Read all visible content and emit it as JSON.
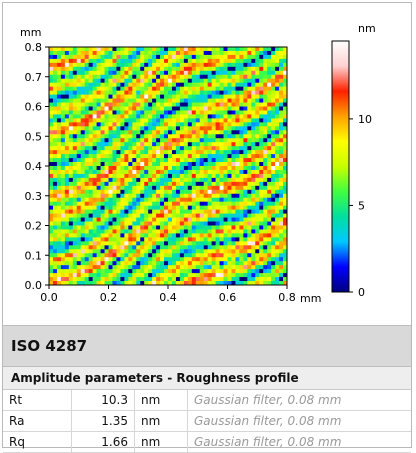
{
  "chart_data": {
    "type": "heatmap",
    "x_unit": "mm",
    "y_unit": "mm",
    "xlim": [
      0,
      0.8
    ],
    "ylim": [
      0,
      0.8
    ],
    "x_ticks": [
      "0.0",
      "0.2",
      "0.4",
      "0.6",
      "0.8"
    ],
    "y_ticks": [
      "0.0",
      "0.1",
      "0.2",
      "0.3",
      "0.4",
      "0.5",
      "0.6",
      "0.7",
      "0.8"
    ],
    "x_unit_label": "mm",
    "y_unit_label": "mm",
    "colorbar": {
      "unit_label": "nm",
      "ticks": [
        "0",
        "5",
        "10"
      ],
      "range": [
        0,
        14.5
      ],
      "stops": [
        "#000080",
        "#0000ff",
        "#00c8ff",
        "#00e0a0",
        "#40ff40",
        "#c8ff00",
        "#ffff00",
        "#ffa000",
        "#ff2000",
        "#ffd0d0",
        "#ffffff"
      ]
    },
    "surface_description_values": {
      "dominant_band_orientation_deg": 30,
      "mean_height_nm": 7
    }
  },
  "panel": {
    "title": "ISO 4287",
    "subtitle": "Amplitude parameters - Roughness profile",
    "rows": [
      {
        "name": "Rt",
        "value": "10.3",
        "unit": "nm",
        "note": "Gaussian filter, 0.08 mm"
      },
      {
        "name": "Ra",
        "value": "1.35",
        "unit": "nm",
        "note": "Gaussian filter, 0.08 mm"
      },
      {
        "name": "Rq",
        "value": "1.66",
        "unit": "nm",
        "note": "Gaussian filter, 0.08 mm"
      }
    ]
  }
}
